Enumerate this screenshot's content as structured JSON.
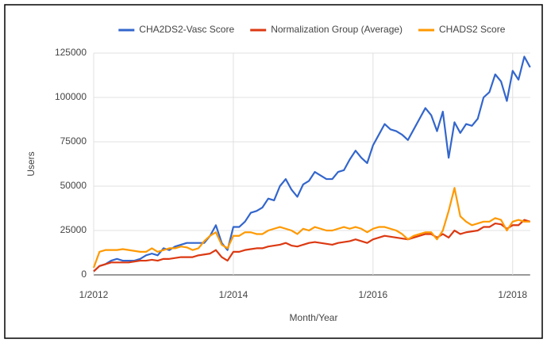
{
  "chart_data": {
    "type": "line",
    "x_label": "Month/Year",
    "y_label": "Users",
    "x": [
      "1/2012",
      "2/2012",
      "3/2012",
      "4/2012",
      "5/2012",
      "6/2012",
      "7/2012",
      "8/2012",
      "9/2012",
      "10/2012",
      "11/2012",
      "12/2012",
      "1/2013",
      "2/2013",
      "3/2013",
      "4/2013",
      "5/2013",
      "6/2013",
      "7/2013",
      "8/2013",
      "9/2013",
      "10/2013",
      "11/2013",
      "12/2013",
      "1/2014",
      "2/2014",
      "3/2014",
      "4/2014",
      "5/2014",
      "6/2014",
      "7/2014",
      "8/2014",
      "9/2014",
      "10/2014",
      "11/2014",
      "12/2014",
      "1/2015",
      "2/2015",
      "3/2015",
      "4/2015",
      "5/2015",
      "6/2015",
      "7/2015",
      "8/2015",
      "9/2015",
      "10/2015",
      "11/2015",
      "12/2015",
      "1/2016",
      "2/2016",
      "3/2016",
      "4/2016",
      "5/2016",
      "6/2016",
      "7/2016",
      "8/2016",
      "9/2016",
      "10/2016",
      "11/2016",
      "12/2016",
      "1/2017",
      "2/2017",
      "3/2017",
      "4/2017",
      "5/2017",
      "6/2017",
      "7/2017",
      "8/2017",
      "9/2017",
      "10/2017",
      "11/2017",
      "12/2017",
      "1/2018",
      "2/2018",
      "3/2018",
      "4/2018"
    ],
    "series": [
      {
        "name": "CHA2DS2-Vasc Score",
        "color": "#3366cc",
        "values": [
          2000,
          5000,
          6000,
          8000,
          9000,
          8000,
          8000,
          8000,
          9000,
          11000,
          12000,
          11000,
          15000,
          14000,
          16000,
          17000,
          18000,
          18000,
          18000,
          18000,
          22000,
          28000,
          18000,
          14000,
          27000,
          27000,
          30000,
          35000,
          36000,
          38000,
          43000,
          42000,
          50000,
          54000,
          48000,
          44000,
          51000,
          53000,
          58000,
          56000,
          54000,
          54000,
          58000,
          59000,
          65000,
          70000,
          66000,
          63000,
          73000,
          79000,
          85000,
          82000,
          81000,
          79000,
          76000,
          82000,
          88000,
          94000,
          90000,
          81000,
          92000,
          66000,
          86000,
          80000,
          85000,
          84000,
          88000,
          100000,
          103000,
          113000,
          109000,
          98000,
          115000,
          110000,
          123000,
          117000
        ]
      },
      {
        "name": "Normalization Group (Average)",
        "color": "#dc3912",
        "values": [
          2000,
          5000,
          6000,
          7000,
          7000,
          7000,
          7000,
          7500,
          8000,
          8000,
          8500,
          8000,
          9000,
          9000,
          9500,
          10000,
          10000,
          10000,
          11000,
          11500,
          12000,
          14000,
          10000,
          8000,
          13000,
          13000,
          14000,
          14500,
          15000,
          15000,
          16000,
          16500,
          17000,
          18000,
          16500,
          16000,
          17000,
          18000,
          18500,
          18000,
          17500,
          17000,
          18000,
          18500,
          19000,
          20000,
          19000,
          18000,
          20000,
          21000,
          22000,
          21500,
          21000,
          20500,
          20000,
          21000,
          22000,
          23000,
          23000,
          21000,
          23000,
          21000,
          25000,
          23000,
          24000,
          24500,
          25000,
          27000,
          27000,
          29000,
          28500,
          26000,
          28000,
          28000,
          31000,
          30000
        ]
      },
      {
        "name": "CHADS2 Score",
        "color": "#ff9900",
        "values": [
          4000,
          13000,
          14000,
          14000,
          14000,
          14500,
          14000,
          13500,
          13000,
          13000,
          15000,
          13000,
          14000,
          15000,
          15000,
          16000,
          15500,
          14000,
          15000,
          19000,
          22000,
          24000,
          17000,
          15000,
          22000,
          22000,
          24000,
          24000,
          23000,
          23000,
          25000,
          26000,
          27000,
          26000,
          25000,
          23000,
          26000,
          25000,
          27000,
          26000,
          25000,
          25000,
          26000,
          27000,
          26000,
          27000,
          26000,
          24000,
          26000,
          27000,
          27000,
          26000,
          25000,
          23000,
          20000,
          22000,
          23000,
          24000,
          24000,
          20000,
          25000,
          36000,
          49000,
          33000,
          30000,
          28000,
          29000,
          30000,
          30000,
          32000,
          31000,
          25000,
          30000,
          31000,
          30000,
          30000
        ]
      }
    ],
    "xlim": [
      "1/2012",
      "4/2018"
    ],
    "xticks": [
      "1/2012",
      "1/2014",
      "1/2016",
      "1/2018"
    ],
    "ylim": [
      0,
      125000
    ],
    "yticks": [
      0,
      25000,
      50000,
      75000,
      100000,
      125000
    ],
    "grid": true,
    "legend": "top"
  }
}
